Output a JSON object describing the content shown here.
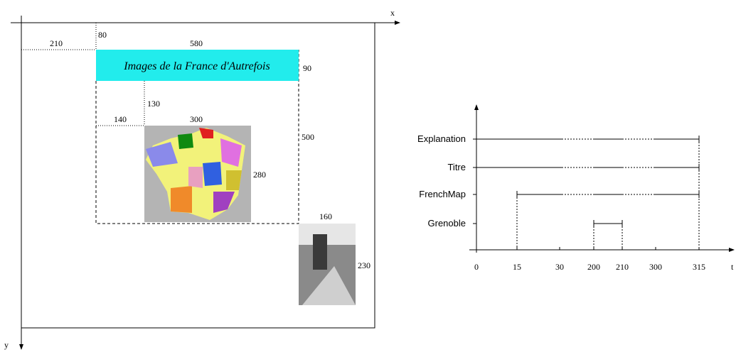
{
  "layout": {
    "x_axis_label": "x",
    "y_axis_label": "y",
    "dimensions": [
      "210",
      "80",
      "580",
      "90",
      "130",
      "140",
      "300",
      "500",
      "280",
      "160",
      "230"
    ],
    "title_box": "Images de la France d'Autrefois"
  },
  "timeline": {
    "rows": [
      "Explanation",
      "Titre",
      "FrenchMap",
      "Grenoble"
    ],
    "ticks": [
      "0",
      "15",
      "30",
      "200",
      "210",
      "300",
      "315"
    ],
    "axis_label": "t"
  }
}
